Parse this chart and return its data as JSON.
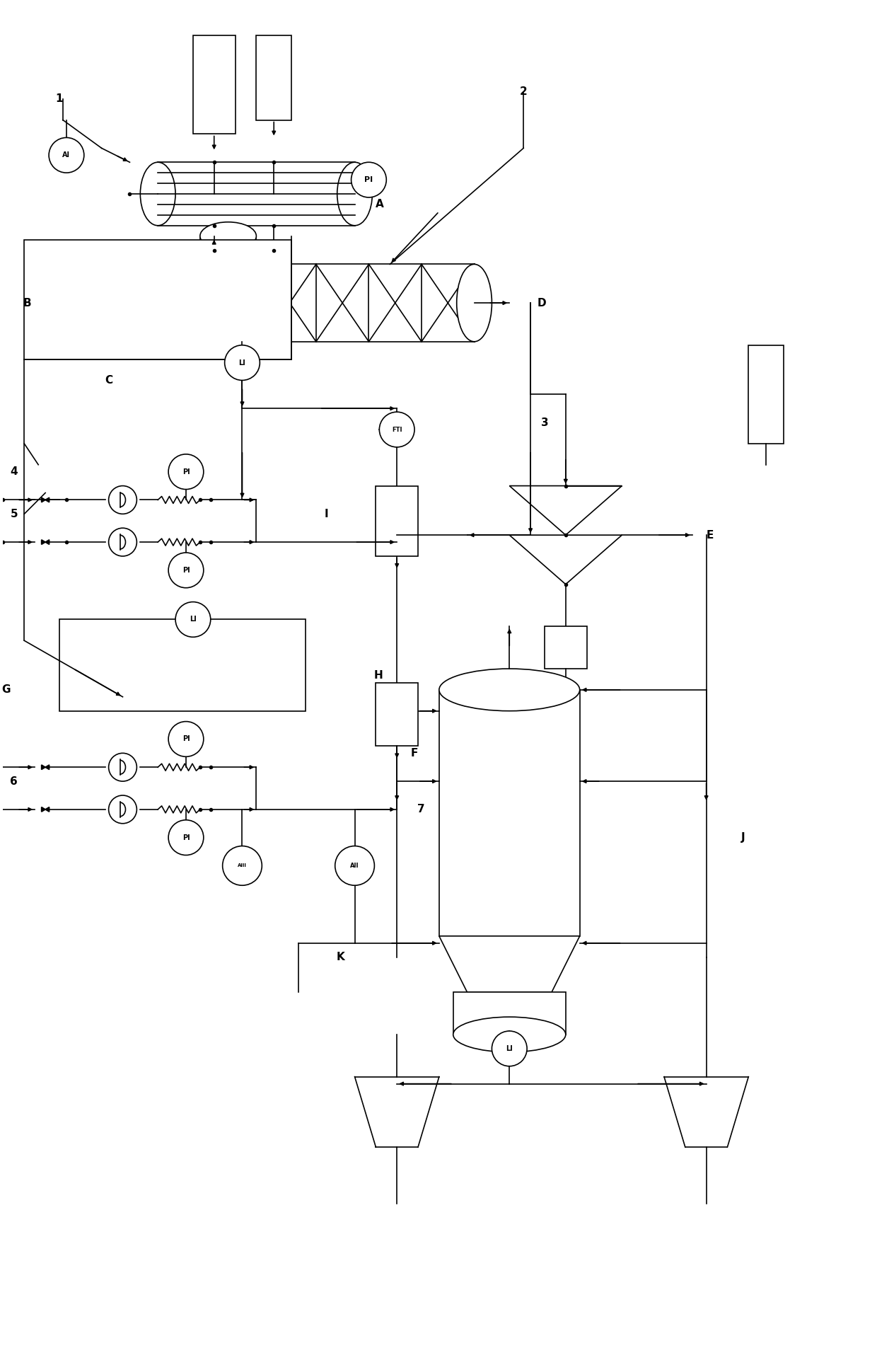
{
  "bg_color": "#ffffff",
  "line_color": "#000000",
  "lw": 1.2,
  "fig_width": 12.4,
  "fig_height": 19.05,
  "dpi": 100,
  "xlim": [
    0,
    124
  ],
  "ylim": [
    0,
    190.5
  ]
}
